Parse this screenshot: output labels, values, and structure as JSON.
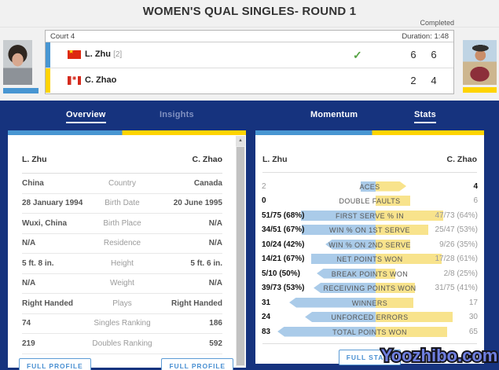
{
  "page": {
    "title": "WOMEN'S QUAL SINGLES- ROUND 1",
    "status": "Completed",
    "watermark": "Yoozhibo.com"
  },
  "scoreboard": {
    "court": "Court 4",
    "duration": "Duration: 1:48",
    "players": [
      {
        "name": "L. Zhu",
        "seed": "[2]",
        "country": "China",
        "accent": "#4896d2",
        "sets": [
          "6",
          "6"
        ],
        "winner": true
      },
      {
        "name": "C. Zhao",
        "seed": "",
        "country": "Canada",
        "accent": "#ffd400",
        "sets": [
          "2",
          "4"
        ],
        "winner": false
      }
    ]
  },
  "tabs": [
    {
      "label": "Overview",
      "active": true
    },
    {
      "label": "Insights",
      "active": false
    },
    {
      "label": "Momentum",
      "active": false
    },
    {
      "label": "Stats",
      "active": true
    }
  ],
  "overview": {
    "left_player": "L. Zhu",
    "right_player": "C. Zhao",
    "rows": [
      {
        "left": "China",
        "label": "Country",
        "right": "Canada"
      },
      {
        "left": "28 January 1994",
        "label": "Birth Date",
        "right": "20 June 1995"
      },
      {
        "left": "Wuxi, China",
        "label": "Birth Place",
        "right": "N/A"
      },
      {
        "left": "N/A",
        "label": "Residence",
        "right": "N/A"
      },
      {
        "left": "5 ft. 8 in.",
        "label": "Height",
        "right": "5 ft. 6 in."
      },
      {
        "left": "N/A",
        "label": "Weight",
        "right": "N/A"
      },
      {
        "left": "Right Handed",
        "label": "Plays",
        "right": "Right Handed"
      },
      {
        "left": "74",
        "label": "Singles Ranking",
        "right": "186"
      },
      {
        "left": "219",
        "label": "Doubles Ranking",
        "right": "592"
      }
    ],
    "profile_button_label": "FULL PROFILE"
  },
  "stats": {
    "left_player": "L. Zhu",
    "right_player": "C. Zhao",
    "bar_colors": {
      "left": "#aacbe9",
      "right": "#f8e38c"
    },
    "rows": [
      {
        "label": "ACES",
        "left": "2",
        "right": "4",
        "winner": "right",
        "left_bar": 14,
        "right_bar": 29,
        "left_arrow": false,
        "right_arrow": true
      },
      {
        "label": "DOUBLE FAULTS",
        "left": "0",
        "right": "6",
        "winner": "left",
        "left_bar": 0,
        "right_bar": 33,
        "left_arrow": false,
        "right_arrow": false
      },
      {
        "label": "FIRST SERVE % IN",
        "left": "51/75 (68%)",
        "right": "47/73 (64%)",
        "winner": "left",
        "left_bar": 71,
        "right_bar": 64,
        "left_arrow": false,
        "right_arrow": false
      },
      {
        "label": "WIN % ON 1ST SERVE",
        "left": "34/51 (67%)",
        "right": "25/47 (53%)",
        "winner": "left",
        "left_bar": 70,
        "right_bar": 50,
        "left_arrow": false,
        "right_arrow": false
      },
      {
        "label": "WIN % ON 2ND SERVE",
        "left": "10/24 (42%)",
        "right": "9/26 (35%)",
        "winner": "left",
        "left_bar": 48,
        "right_bar": 33,
        "left_arrow": true,
        "right_arrow": false
      },
      {
        "label": "NET POINTS WON",
        "left": "14/21 (67%)",
        "right": "17/28 (61%)",
        "winner": "left",
        "left_bar": 61,
        "right_bar": 63,
        "left_arrow": false,
        "right_arrow": false
      },
      {
        "label": "BREAK POINTS WON",
        "left": "5/10 (50%)",
        "right": "2/8 (25%)",
        "winner": "left",
        "left_bar": 56,
        "right_bar": 19,
        "left_arrow": true,
        "right_arrow": false
      },
      {
        "label": "RECEIVING POINTS WON",
        "left": "39/73 (53%)",
        "right": "31/75 (41%)",
        "winner": "left",
        "left_bar": 59,
        "right_bar": 37,
        "left_arrow": true,
        "right_arrow": false
      },
      {
        "label": "WINNERS",
        "left": "31",
        "right": "17",
        "winner": "left",
        "left_bar": 82,
        "right_bar": 36,
        "left_arrow": true,
        "right_arrow": false
      },
      {
        "label": "UNFORCED ERRORS",
        "left": "24",
        "right": "30",
        "winner": "left",
        "left_bar": 67,
        "right_bar": 73,
        "left_arrow": true,
        "right_arrow": false
      },
      {
        "label": "TOTAL POINTS WON",
        "left": "83",
        "right": "65",
        "winner": "left",
        "left_bar": 93,
        "right_bar": 68,
        "left_arrow": true,
        "right_arrow": false
      }
    ],
    "stats_button_label": "FULL STATS"
  }
}
